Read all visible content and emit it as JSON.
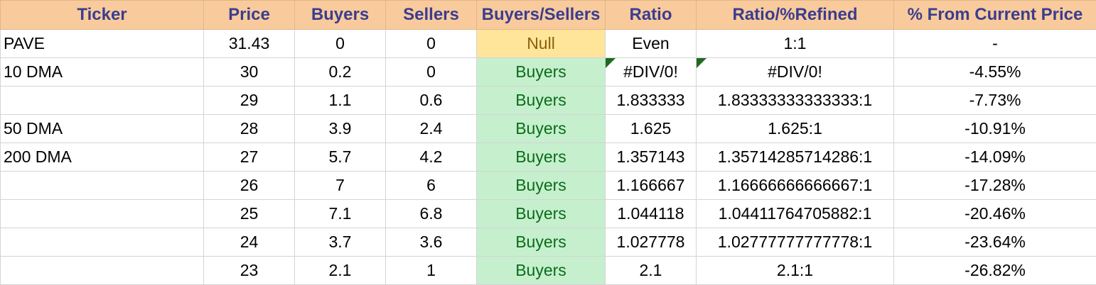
{
  "columns": [
    "Ticker",
    "Price",
    "Buyers",
    "Sellers",
    "Buyers/Sellers",
    "Ratio",
    "Ratio/%Refined",
    "% From Current Price"
  ],
  "rows": [
    {
      "ticker": "PAVE",
      "price": "31.43",
      "buyers": "0",
      "sellers": "0",
      "bs": "Null",
      "ratio": "Even",
      "refined": "1:1",
      "pct": "-"
    },
    {
      "ticker": "10 DMA",
      "price": "30",
      "buyers": "0.2",
      "sellers": "0",
      "bs": "Buyers",
      "ratio": "#DIV/0!",
      "refined": "#DIV/0!",
      "pct": "-4.55%"
    },
    {
      "ticker": "",
      "price": "29",
      "buyers": "1.1",
      "sellers": "0.6",
      "bs": "Buyers",
      "ratio": "1.833333",
      "refined": "1.83333333333333:1",
      "pct": "-7.73%"
    },
    {
      "ticker": "50 DMA",
      "price": "28",
      "buyers": "3.9",
      "sellers": "2.4",
      "bs": "Buyers",
      "ratio": "1.625",
      "refined": "1.625:1",
      "pct": "-10.91%"
    },
    {
      "ticker": "200 DMA",
      "price": "27",
      "buyers": "5.7",
      "sellers": "4.2",
      "bs": "Buyers",
      "ratio": "1.357143",
      "refined": "1.35714285714286:1",
      "pct": "-14.09%"
    },
    {
      "ticker": "",
      "price": "26",
      "buyers": "7",
      "sellers": "6",
      "bs": "Buyers",
      "ratio": "1.166667",
      "refined": "1.16666666666667:1",
      "pct": "-17.28%"
    },
    {
      "ticker": "",
      "price": "25",
      "buyers": "7.1",
      "sellers": "6.8",
      "bs": "Buyers",
      "ratio": "1.044118",
      "refined": "1.04411764705882:1",
      "pct": "-20.46%"
    },
    {
      "ticker": "",
      "price": "24",
      "buyers": "3.7",
      "sellers": "3.6",
      "bs": "Buyers",
      "ratio": "1.027778",
      "refined": "1.02777777777778:1",
      "pct": "-23.64%"
    },
    {
      "ticker": "",
      "price": "23",
      "buyers": "2.1",
      "sellers": "1",
      "bs": "Buyers",
      "ratio": "2.1",
      "refined": "2.1:1",
      "pct": "-26.82%"
    }
  ],
  "colors": {
    "header_bg": "#f9cb9c",
    "header_text": "#3b3d8f",
    "null_bg": "#ffe599",
    "null_text": "#8b5e0a",
    "buyers_bg": "#c6efce",
    "buyers_text": "#0a6d19",
    "error_flag": "#1e6b1e"
  }
}
